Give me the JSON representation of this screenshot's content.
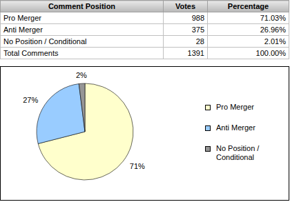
{
  "table": {
    "header": [
      "Comment Position",
      "Votes",
      "Percentage"
    ],
    "rows": [
      [
        "Pro Merger",
        988,
        "71.03%"
      ],
      [
        "Anti Merger",
        375,
        "26.96%"
      ],
      [
        "No Position / Conditional",
        28,
        "2.01%"
      ],
      [
        "Total Comments",
        1391,
        "100.00%"
      ]
    ]
  },
  "chart_data": {
    "type": "pie",
    "categories": [
      "Pro Merger",
      "Anti Merger",
      "No Position / Conditional"
    ],
    "values": [
      71,
      27,
      2
    ],
    "value_labels": [
      "71%",
      "27%",
      "2%"
    ],
    "colors": [
      "#ffffcc",
      "#99ccff",
      "#969696"
    ],
    "data_labels": true,
    "legend": "right"
  }
}
